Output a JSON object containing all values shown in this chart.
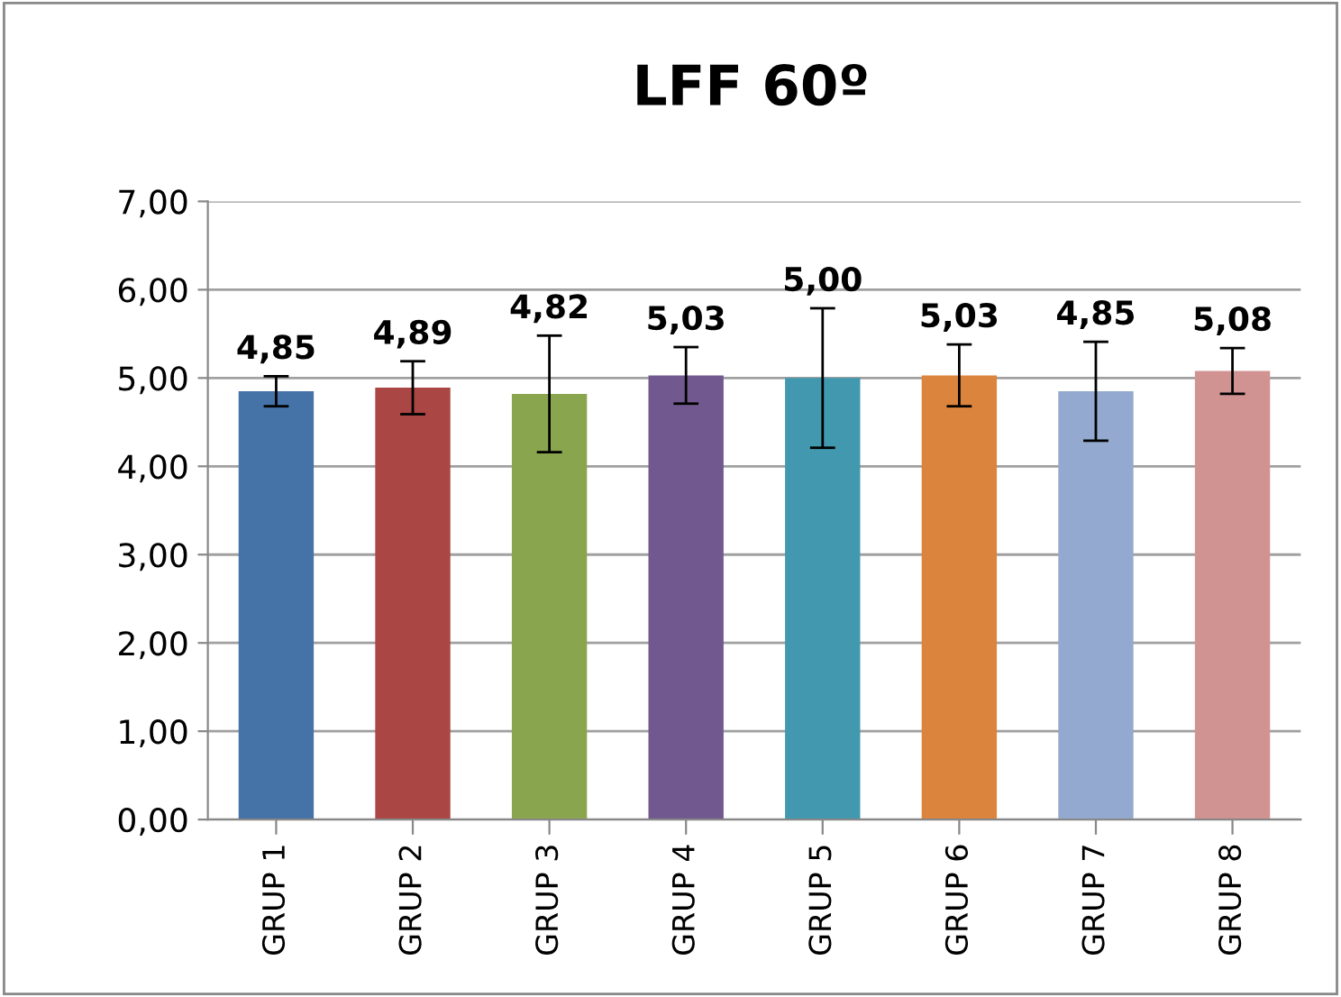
{
  "chart_data": {
    "type": "bar",
    "title": "LFF 60º",
    "categories": [
      "GRUP 1",
      "GRUP 2",
      "GRUP 3",
      "GRUP 4",
      "GRUP 5",
      "GRUP 6",
      "GRUP 7",
      "GRUP 8"
    ],
    "values": [
      4.85,
      4.89,
      4.82,
      5.03,
      5.0,
      5.03,
      4.85,
      5.08
    ],
    "colors": [
      "#4572a7",
      "#aa4643",
      "#89a54e",
      "#71588f",
      "#4198af",
      "#db843d",
      "#93a9cf",
      "#d19392"
    ],
    "errors": [
      0.17,
      0.3,
      0.66,
      0.32,
      0.79,
      0.35,
      0.56,
      0.26
    ],
    "value_labels": [
      "4,85",
      "4,89",
      "4,82",
      "5,03",
      "5,00",
      "5,03",
      "4,85",
      "5,08"
    ],
    "ylim": [
      0,
      7
    ],
    "yticks": [
      {
        "value": 0,
        "label": "0,00"
      },
      {
        "value": 1,
        "label": "1,00"
      },
      {
        "value": 2,
        "label": "2,00"
      },
      {
        "value": 3,
        "label": "3,00"
      },
      {
        "value": 4,
        "label": "4,00"
      },
      {
        "value": 5,
        "label": "5,00"
      },
      {
        "value": 6,
        "label": "6,00"
      },
      {
        "value": 7,
        "label": "7,00"
      }
    ],
    "grid": "y",
    "legend": false
  }
}
